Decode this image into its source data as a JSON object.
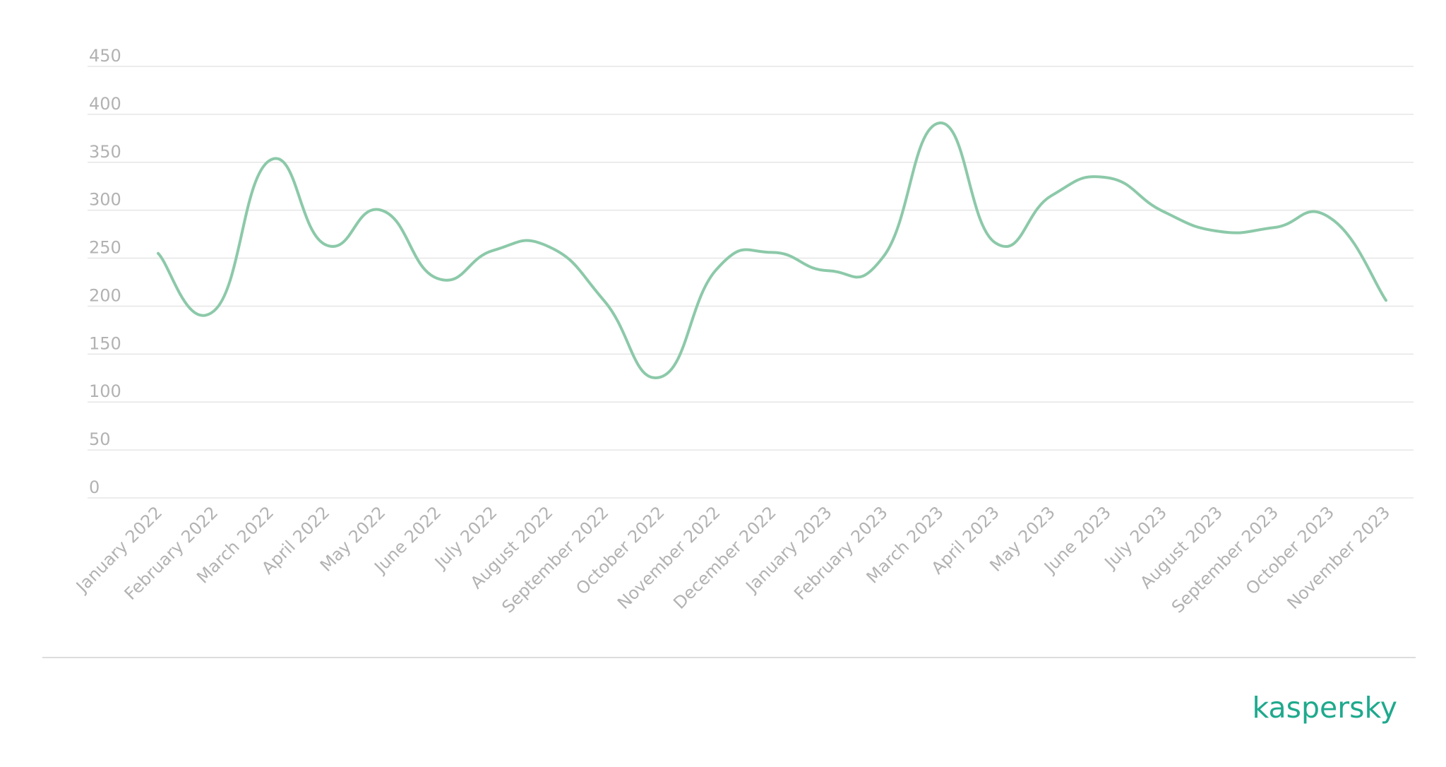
{
  "branding": {
    "logo_text": "kaspersky",
    "accent_color": "#1fa98d"
  },
  "chart_data": {
    "type": "line",
    "title": "",
    "xlabel": "",
    "ylabel": "",
    "ylim": [
      0,
      450
    ],
    "y_ticks": [
      0,
      50,
      100,
      150,
      200,
      250,
      300,
      350,
      400,
      450
    ],
    "grid": true,
    "legend": "none",
    "curve": "smooth",
    "line_color": "#8cc9a9",
    "categories": [
      "January 2022",
      "February 2022",
      "March 2022",
      "April 2022",
      "May 2022",
      "June 2022",
      "July 2022",
      "August 2022",
      "September 2022",
      "October 2022",
      "November 2022",
      "December 2022",
      "January 2023",
      "February 2023",
      "March 2023",
      "April 2023",
      "May 2023",
      "June 2023",
      "July 2023",
      "August 2023",
      "September 2023",
      "October 2023",
      "November 2023"
    ],
    "series": [
      {
        "values": [
          255,
          195,
          352,
          264,
          300,
          229,
          258,
          262,
          205,
          126,
          238,
          256,
          237,
          252,
          391,
          266,
          315,
          334,
          299,
          278,
          282,
          292,
          206
        ]
      }
    ]
  }
}
